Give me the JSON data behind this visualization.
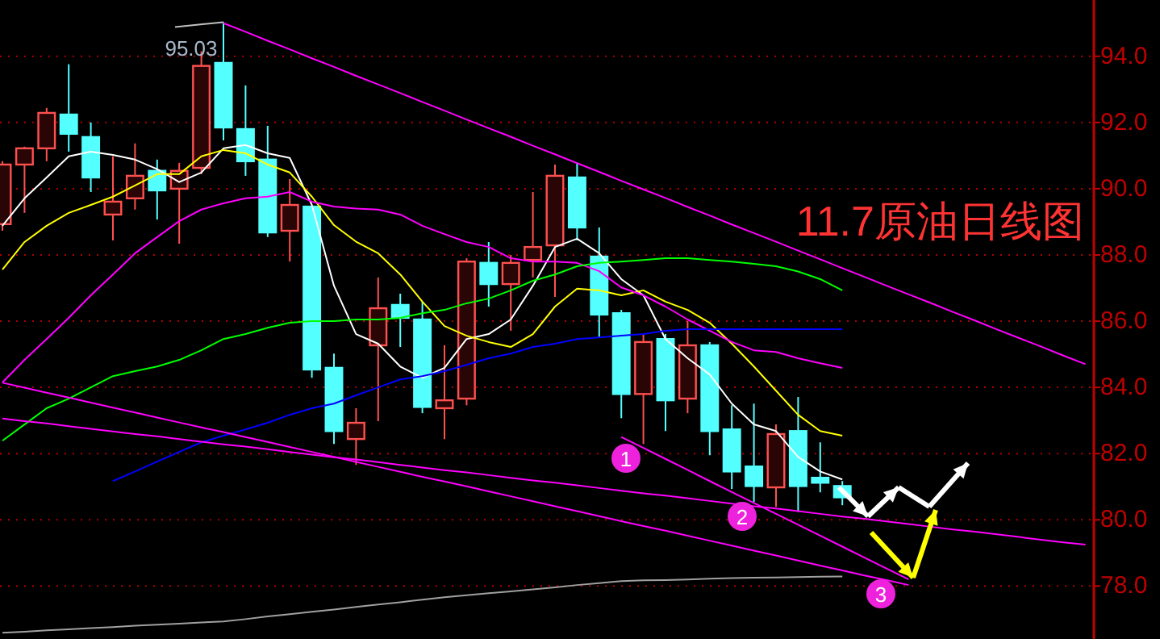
{
  "chart_data": {
    "type": "candlestick",
    "title": "11.7原油日线图",
    "categories": [
      null,
      null,
      null,
      null,
      null,
      null,
      null,
      null,
      null,
      null,
      null,
      null,
      null,
      null,
      null,
      null,
      null,
      null,
      null,
      null,
      null,
      null,
      null,
      null,
      null,
      null,
      null,
      null,
      null,
      null,
      null,
      null,
      null,
      null,
      null,
      null,
      null,
      null,
      null,
      null,
      null,
      null,
      null,
      null,
      null,
      null,
      null,
      null,
      null,
      null
    ],
    "ohlc": [
      [
        88.93,
        90.83,
        88.73,
        90.73
      ],
      [
        90.73,
        91.27,
        89.27,
        91.22
      ],
      [
        91.22,
        92.44,
        90.83,
        92.29
      ],
      [
        92.24,
        93.76,
        91.12,
        91.66
      ],
      [
        91.56,
        92.0,
        89.9,
        90.34
      ],
      [
        89.22,
        90.98,
        88.44,
        89.61
      ],
      [
        89.71,
        91.37,
        89.37,
        90.39
      ],
      [
        90.54,
        90.88,
        89.07,
        89.95
      ],
      [
        90.0,
        90.78,
        88.34,
        90.54
      ],
      [
        90.63,
        94.15,
        90.44,
        93.71
      ],
      [
        93.8,
        95.03,
        91.46,
        91.85
      ],
      [
        91.8,
        93.12,
        90.39,
        90.83
      ],
      [
        90.88,
        91.9,
        88.54,
        88.68
      ],
      [
        88.73,
        90.29,
        87.8,
        89.51
      ],
      [
        89.46,
        89.46,
        84.29,
        84.54
      ],
      [
        84.59,
        85.02,
        82.29,
        82.68
      ],
      [
        82.44,
        83.37,
        81.66,
        82.93
      ],
      [
        85.27,
        87.32,
        82.98,
        86.39
      ],
      [
        86.49,
        86.83,
        85.22,
        86.1
      ],
      [
        86.05,
        86.59,
        83.22,
        83.41
      ],
      [
        83.37,
        85.27,
        82.44,
        83.61
      ],
      [
        83.66,
        87.9,
        83.46,
        87.8
      ],
      [
        87.76,
        88.39,
        86.44,
        87.12
      ],
      [
        87.12,
        88.0,
        85.71,
        87.76
      ],
      [
        87.85,
        89.9,
        87.32,
        88.24
      ],
      [
        88.29,
        90.73,
        86.73,
        90.39
      ],
      [
        90.34,
        90.78,
        88.44,
        88.83
      ],
      [
        87.95,
        88.83,
        85.51,
        86.2
      ],
      [
        86.24,
        86.34,
        83.07,
        83.8
      ],
      [
        83.8,
        85.61,
        82.29,
        85.37
      ],
      [
        85.46,
        85.61,
        82.68,
        83.61
      ],
      [
        83.66,
        86.0,
        83.22,
        85.27
      ],
      [
        85.27,
        85.37,
        81.95,
        82.68
      ],
      [
        82.73,
        83.46,
        80.93,
        81.46
      ],
      [
        81.61,
        83.51,
        80.54,
        81.02
      ],
      [
        80.98,
        82.88,
        80.39,
        82.59
      ],
      [
        82.68,
        83.71,
        80.24,
        81.02
      ],
      [
        81.27,
        82.34,
        80.83,
        81.12
      ],
      [
        81.02,
        81.17,
        80.44,
        80.68
      ],
      null,
      null,
      null,
      null,
      null,
      null,
      null,
      null,
      null,
      null,
      null
    ],
    "colors": [
      "#ff5050",
      "#ff5050",
      "#ff5050",
      "#54ffff",
      "#54ffff",
      "#ff5050",
      "#ff5050",
      "#54ffff",
      "#ff5050",
      "#ff5050",
      "#54ffff",
      "#54ffff",
      "#54ffff",
      "#ff5050",
      "#54ffff",
      "#54ffff",
      "#ff5050",
      "#ff5050",
      "#54ffff",
      "#54ffff",
      "#ff5050",
      "#ff5050",
      "#54ffff",
      "#ff5050",
      "#ff5050",
      "#ff5050",
      "#54ffff",
      "#54ffff",
      "#54ffff",
      "#ff5050",
      "#54ffff",
      "#ff5050",
      "#54ffff",
      "#54ffff",
      "#54ffff",
      "#ff5050",
      "#54ffff",
      "#54ffff",
      "#54ffff",
      null,
      null,
      null,
      null,
      null,
      null,
      null,
      null,
      null,
      null,
      null
    ],
    "series": [
      {
        "type": "line",
        "color": "#ffffff",
        "values": [
          88.88,
          89.71,
          90.34,
          90.98,
          91.12,
          91.02,
          90.88,
          90.59,
          90.2,
          90.49,
          91.22,
          91.32,
          91.07,
          90.93,
          89.51,
          87.07,
          85.61,
          85.32,
          84.63,
          84.29,
          84.59,
          85.46,
          85.61,
          86.05,
          87.07,
          88.24,
          88.49,
          88.05,
          87.27,
          86.78,
          85.46,
          84.88,
          84.39,
          83.51,
          82.88,
          82.68,
          81.9,
          81.46,
          81.22,
          null,
          null,
          null,
          null,
          null,
          null,
          null,
          null,
          null,
          null,
          null
        ]
      },
      {
        "type": "line",
        "color": "#ffff00",
        "values": [
          87.56,
          88.39,
          88.88,
          89.27,
          89.51,
          89.76,
          90.1,
          90.44,
          90.44,
          90.98,
          91.17,
          91.07,
          90.73,
          90.49,
          89.76,
          88.9,
          88.4,
          88.05,
          87.41,
          86.59,
          85.85,
          85.56,
          85.37,
          85.22,
          85.61,
          86.44,
          86.98,
          86.93,
          86.78,
          86.93,
          86.59,
          86.34,
          85.95,
          85.32,
          84.63,
          83.9,
          83.17,
          82.68,
          82.54,
          null,
          null,
          null,
          null,
          null,
          null,
          null,
          null,
          null,
          null,
          null
        ]
      },
      {
        "type": "line",
        "color": "#ff00ff",
        "values": [
          84.15,
          84.83,
          85.46,
          86.1,
          86.78,
          87.41,
          88.05,
          88.54,
          89.02,
          89.37,
          89.56,
          89.71,
          89.76,
          89.9,
          89.61,
          89.46,
          89.4,
          89.37,
          89.22,
          88.88,
          88.63,
          88.39,
          88.24,
          87.9,
          87.8,
          87.8,
          87.76,
          87.51,
          87.02,
          86.78,
          86.44,
          86.05,
          85.71,
          85.37,
          85.12,
          85.07,
          84.88,
          84.73,
          84.59,
          null,
          null,
          null,
          null,
          null,
          null,
          null,
          null,
          null,
          null,
          null
        ]
      },
      {
        "type": "line",
        "color": "#00ff00",
        "values": [
          82.39,
          82.88,
          83.37,
          83.66,
          84.0,
          84.34,
          84.49,
          84.63,
          84.83,
          85.12,
          85.46,
          85.61,
          85.8,
          85.95,
          86.0,
          86.0,
          86.05,
          86.05,
          86.1,
          86.24,
          86.34,
          86.54,
          86.68,
          86.93,
          87.22,
          87.41,
          87.66,
          87.76,
          87.8,
          87.85,
          87.9,
          87.9,
          87.85,
          87.8,
          87.73,
          87.66,
          87.5,
          87.27,
          86.93,
          null,
          null,
          null,
          null,
          null,
          null,
          null,
          null,
          null,
          null,
          null
        ]
      },
      {
        "type": "line",
        "color": "#0000ff",
        "values": [
          null,
          null,
          null,
          null,
          null,
          81.17,
          81.46,
          81.76,
          82.05,
          82.34,
          82.54,
          82.73,
          82.93,
          83.17,
          83.37,
          83.51,
          83.76,
          84.0,
          84.24,
          84.34,
          84.49,
          84.68,
          84.88,
          85.02,
          85.22,
          85.32,
          85.46,
          85.51,
          85.56,
          85.61,
          85.71,
          85.76,
          85.76,
          85.76,
          85.76,
          85.76,
          85.76,
          85.76,
          85.76,
          null,
          null,
          null,
          null,
          null,
          null,
          null,
          null,
          null,
          null,
          null
        ]
      },
      {
        "type": "line",
        "color": "#a0a0a0",
        "values": [
          76.59,
          76.62,
          76.66,
          76.69,
          76.73,
          76.76,
          76.8,
          76.83,
          76.86,
          76.9,
          76.93,
          77.0,
          77.08,
          77.15,
          77.22,
          77.29,
          77.37,
          77.44,
          77.51,
          77.59,
          77.66,
          77.72,
          77.78,
          77.84,
          77.9,
          77.96,
          78.03,
          78.09,
          78.15,
          78.17,
          78.18,
          78.2,
          78.22,
          78.24,
          78.25,
          78.26,
          78.27,
          78.28,
          78.29,
          null,
          null,
          null,
          null,
          null,
          null,
          null,
          null,
          null,
          null,
          null
        ]
      },
      {
        "type": "line",
        "color": "#ff00ff",
        "values": [
          null,
          null,
          null,
          null,
          null,
          null,
          null,
          null,
          null,
          null,
          95.0,
          94.74,
          94.47,
          94.21,
          93.94,
          93.68,
          93.41,
          93.15,
          92.89,
          92.62,
          92.36,
          92.09,
          91.83,
          91.57,
          91.3,
          91.04,
          90.77,
          90.51,
          90.24,
          89.98,
          89.72,
          89.45,
          89.19,
          88.92,
          88.66,
          88.4,
          88.13,
          87.87,
          87.6,
          87.34,
          87.07,
          86.81,
          86.55,
          86.28,
          86.02,
          85.75,
          85.49,
          85.23,
          84.96,
          84.7
        ]
      },
      {
        "type": "line",
        "color": "#ff00ff",
        "values": [
          84.14,
          83.99,
          83.84,
          83.69,
          83.54,
          83.39,
          83.24,
          83.09,
          82.94,
          82.79,
          82.65,
          82.5,
          82.35,
          82.2,
          82.05,
          81.9,
          81.75,
          81.6,
          81.45,
          81.3,
          81.16,
          81.01,
          80.86,
          80.71,
          80.56,
          80.41,
          80.26,
          80.11,
          79.96,
          79.81,
          79.67,
          79.52,
          79.37,
          79.22,
          79.07,
          78.92,
          78.77,
          78.62,
          78.47,
          78.32,
          78.18,
          78.03,
          null,
          null,
          null,
          null,
          null,
          null,
          null,
          null
        ]
      },
      {
        "type": "line",
        "color": "#ff00ff",
        "values": [
          83.06,
          82.98,
          82.91,
          82.83,
          82.75,
          82.67,
          82.59,
          82.52,
          82.44,
          82.36,
          82.28,
          82.21,
          82.13,
          82.05,
          81.97,
          81.89,
          81.82,
          81.74,
          81.66,
          81.58,
          81.5,
          81.43,
          81.35,
          81.27,
          81.19,
          81.12,
          81.04,
          80.96,
          80.88,
          80.8,
          80.73,
          80.65,
          80.57,
          80.49,
          80.41,
          80.34,
          80.26,
          80.18,
          80.1,
          80.03,
          79.95,
          79.87,
          79.79,
          79.71,
          79.64,
          79.56,
          79.48,
          79.4,
          79.32,
          79.25
        ]
      },
      {
        "type": "line",
        "color": "#ff00ff",
        "values": [
          null,
          null,
          null,
          null,
          null,
          null,
          null,
          null,
          null,
          null,
          null,
          null,
          null,
          null,
          null,
          null,
          null,
          null,
          null,
          null,
          null,
          null,
          null,
          null,
          null,
          null,
          null,
          null,
          82.5,
          82.17,
          81.84,
          81.51,
          81.17,
          80.84,
          80.51,
          80.18,
          79.85,
          79.52,
          79.19,
          78.86,
          78.53,
          78.2,
          null,
          null,
          null,
          null,
          null,
          null,
          null,
          null
        ]
      }
    ],
    "annotations": [
      "95.03",
      "1",
      "2",
      "3"
    ],
    "ylim": [
      76.4,
      95.7
    ],
    "yticks": [
      {
        "value": 78,
        "label": "78.0"
      },
      {
        "value": 80,
        "label": "80.0"
      },
      {
        "value": 82,
        "label": "82.0"
      },
      {
        "value": 84,
        "label": "84.0"
      },
      {
        "value": 86,
        "label": "86.0"
      },
      {
        "value": 88,
        "label": "88.0"
      },
      {
        "value": 90,
        "label": "90.0"
      },
      {
        "value": 92,
        "label": "92.0"
      },
      {
        "value": 94,
        "label": "94.0"
      }
    ],
    "grid": "y",
    "tick_labels": "y"
  }
}
